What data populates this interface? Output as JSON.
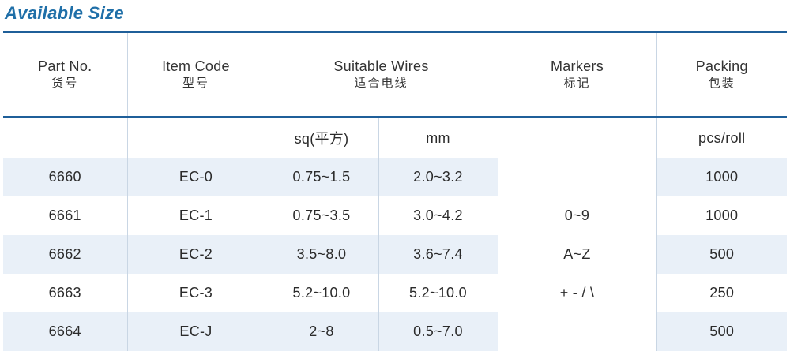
{
  "title": "Available Size",
  "headers": {
    "part_no": "Part No.",
    "part_no_zh": "货号",
    "item_code": "Item Code",
    "item_code_zh": "型号",
    "wires": "Suitable Wires",
    "wires_zh": "适合电线",
    "markers": "Markers",
    "markers_zh": "标记",
    "packing": "Packing",
    "packing_zh": "包装"
  },
  "subheaders": {
    "sq": "sq(平方)",
    "mm": "mm",
    "pcs": "pcs/roll"
  },
  "rows": [
    {
      "part": "6660",
      "code": "EC-0",
      "sq": "0.75~1.5",
      "mm": "2.0~3.2",
      "packing": "1000"
    },
    {
      "part": "6661",
      "code": "EC-1",
      "sq": "0.75~3.5",
      "mm": "3.0~4.2",
      "packing": "1000"
    },
    {
      "part": "6662",
      "code": "EC-2",
      "sq": "3.5~8.0",
      "mm": "3.6~7.4",
      "packing": "500"
    },
    {
      "part": "6663",
      "code": "EC-3",
      "sq": "5.2~10.0",
      "mm": "5.2~10.0",
      "packing": "250"
    },
    {
      "part": "6664",
      "code": "EC-J",
      "sq": "2~8",
      "mm": "0.5~7.0",
      "packing": "500"
    }
  ],
  "markers": [
    "0~9",
    "A~Z",
    "+ - / \\"
  ],
  "colors": {
    "accent": "#1f5f99",
    "title": "#1f6fa8",
    "row_shade": "#e9f0f8"
  }
}
